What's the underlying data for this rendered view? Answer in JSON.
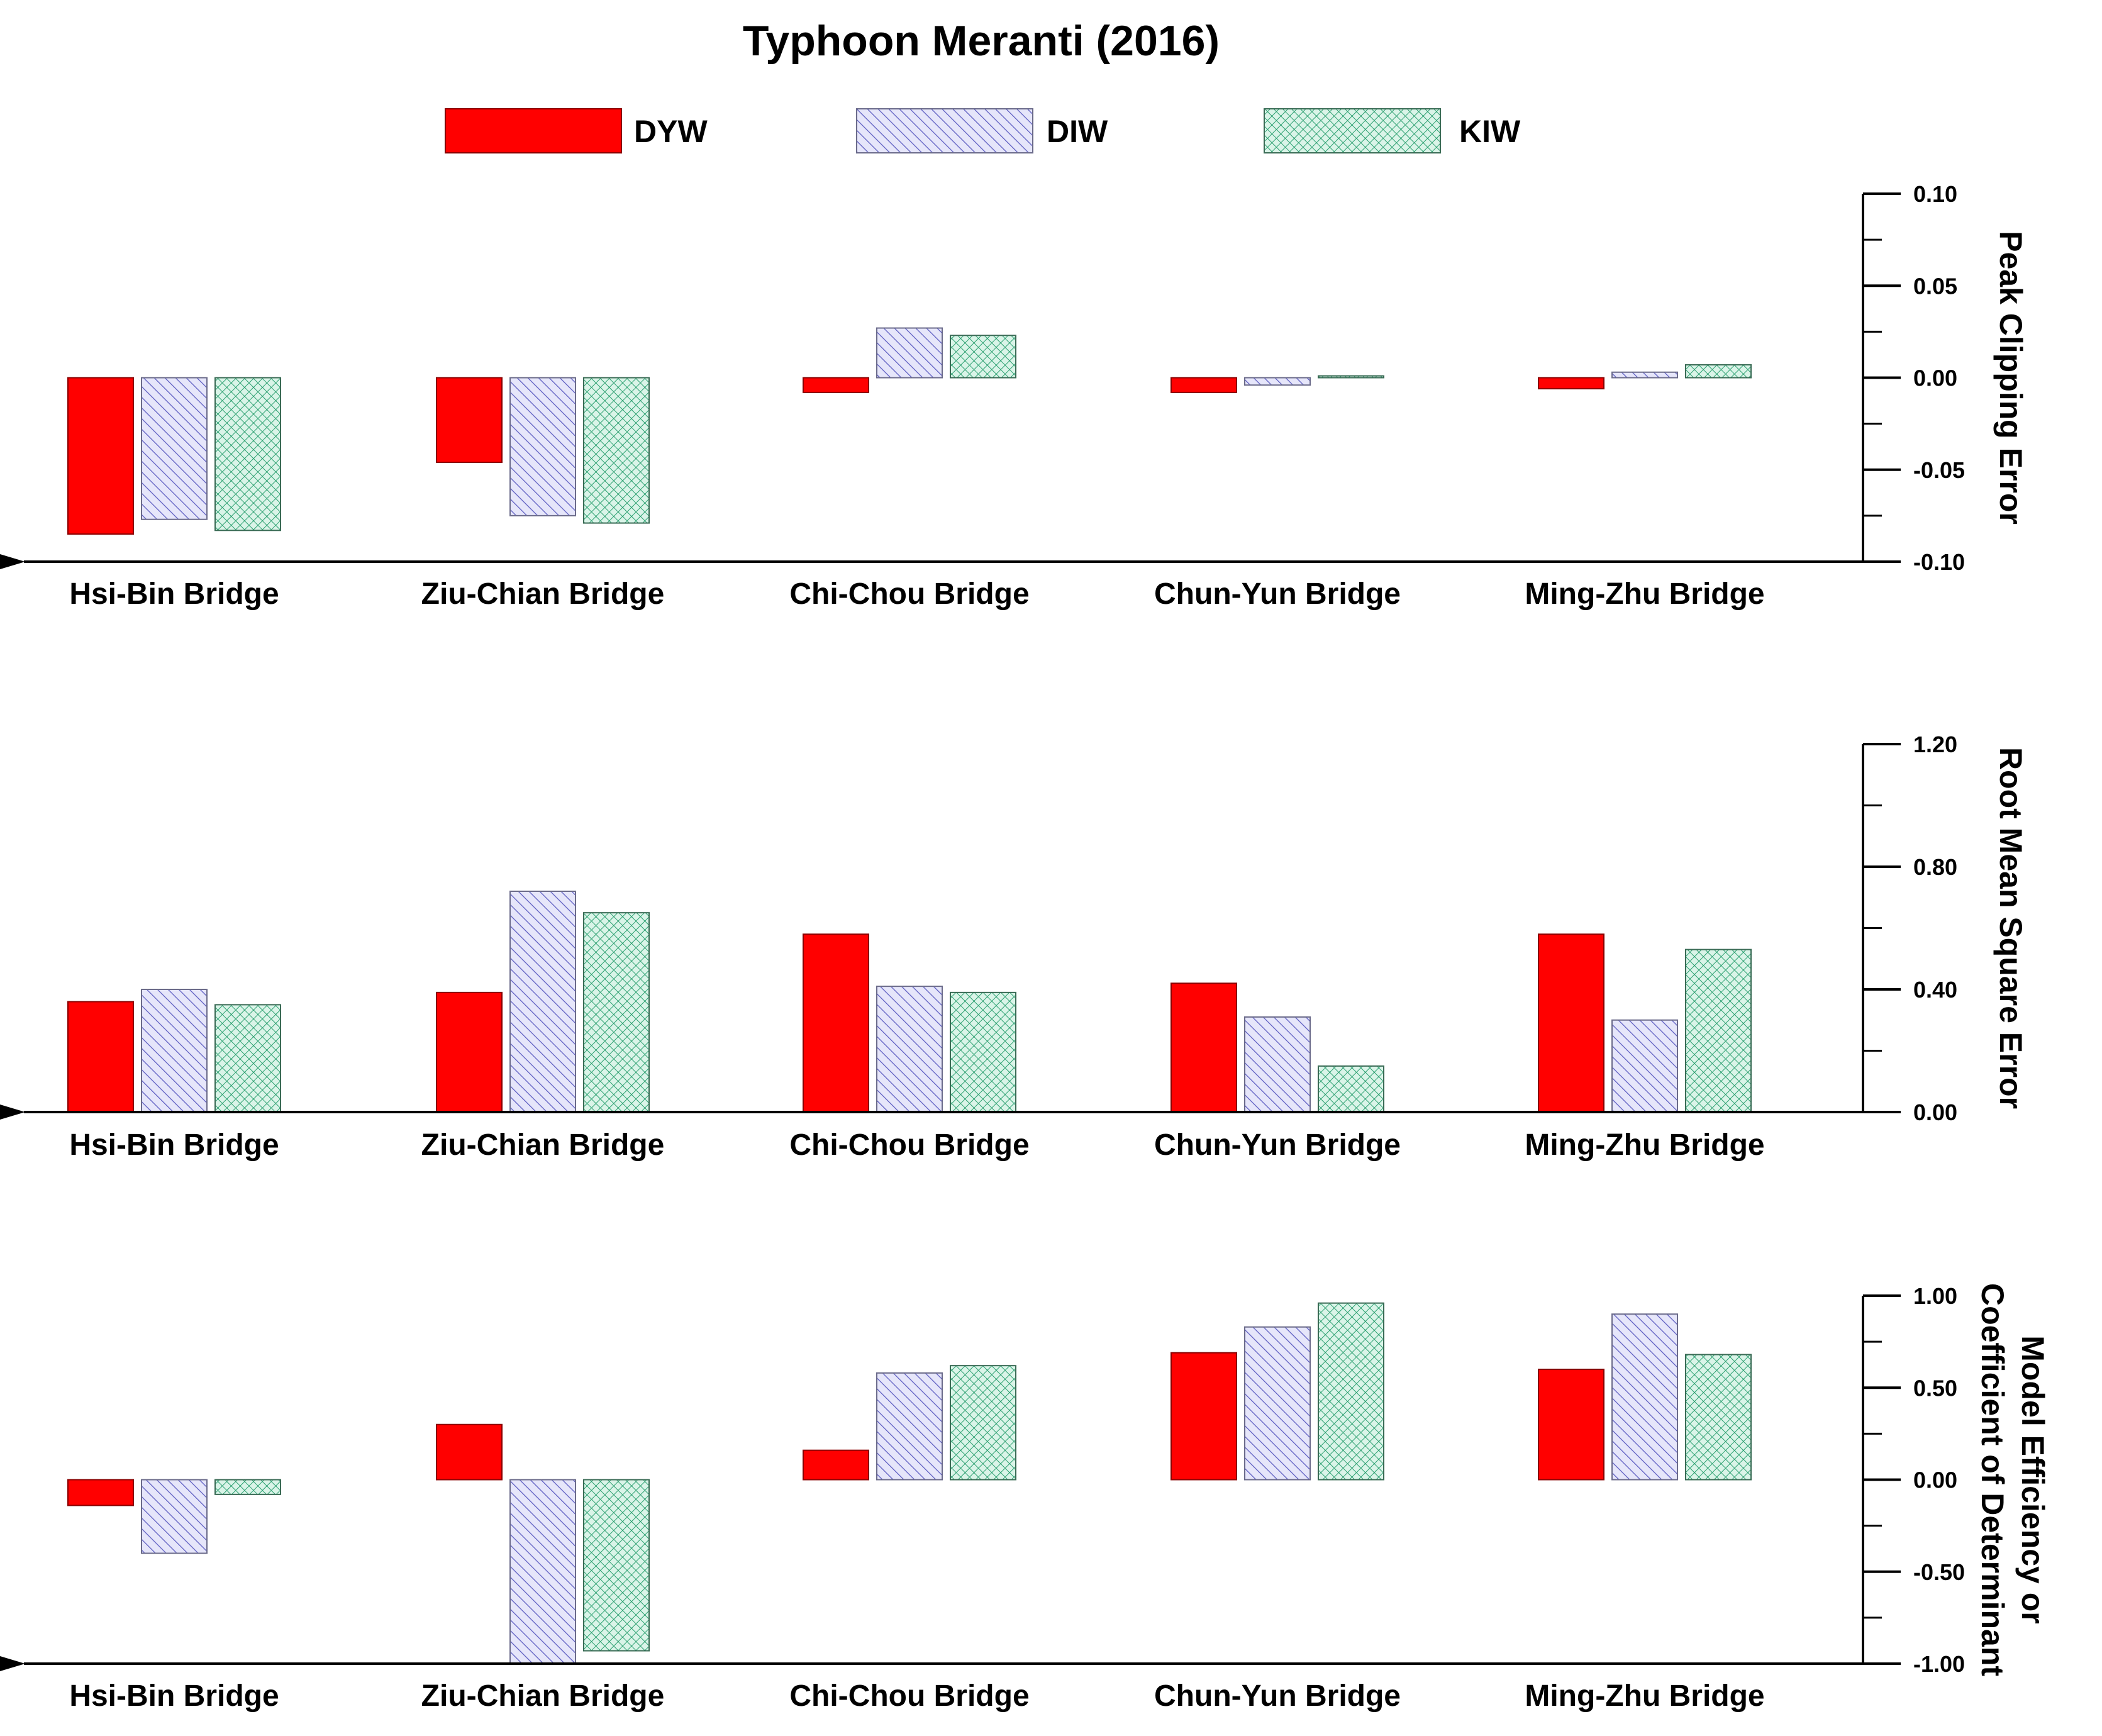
{
  "title": "Typhoon Meranti (2016)",
  "legend": [
    {
      "name": "DYW",
      "pattern": "solid",
      "fill": "#ff0000"
    },
    {
      "name": "DIW",
      "pattern": "hatch",
      "fill": "#e0e0f8",
      "stroke": "#5555bb"
    },
    {
      "name": "KIW",
      "pattern": "crosshatch",
      "fill": "#d6f2e6",
      "stroke": "#2aa070"
    }
  ],
  "chart_data": [
    {
      "type": "bar",
      "ylabel": [
        "Peak Clipping Error"
      ],
      "ylim": [
        -0.1,
        0.1
      ],
      "ticks": [
        "0.10",
        "0.05",
        "0.00",
        "-0.05",
        "-0.10"
      ],
      "tick_values": [
        0.1,
        0.05,
        0.0,
        -0.05,
        -0.1
      ],
      "categories": [
        "Hsi-Bin Bridge",
        "Ziu-Chian Bridge",
        "Chi-Chou Bridge",
        "Chun-Yun Bridge",
        "Ming-Zhu Bridge"
      ],
      "series": [
        {
          "name": "DYW",
          "values": [
            -0.085,
            -0.046,
            -0.008,
            -0.008,
            -0.006
          ]
        },
        {
          "name": "DIW",
          "values": [
            -0.077,
            -0.075,
            0.027,
            -0.004,
            0.003
          ]
        },
        {
          "name": "KIW",
          "values": [
            -0.083,
            -0.079,
            0.023,
            0.001,
            0.007
          ]
        }
      ]
    },
    {
      "type": "bar",
      "ylabel": [
        "Root Mean Square Error"
      ],
      "ylim": [
        0.0,
        1.2
      ],
      "ticks": [
        "1.20",
        "0.80",
        "0.40",
        "0.00"
      ],
      "tick_values": [
        1.2,
        0.8,
        0.4,
        0.0
      ],
      "categories": [
        "Hsi-Bin Bridge",
        "Ziu-Chian Bridge",
        "Chi-Chou Bridge",
        "Chun-Yun Bridge",
        "Ming-Zhu Bridge"
      ],
      "series": [
        {
          "name": "DYW",
          "values": [
            0.36,
            0.39,
            0.58,
            0.42,
            0.58
          ]
        },
        {
          "name": "DIW",
          "values": [
            0.4,
            0.72,
            0.41,
            0.31,
            0.3
          ]
        },
        {
          "name": "KIW",
          "values": [
            0.35,
            0.65,
            0.39,
            0.15,
            0.53
          ]
        }
      ]
    },
    {
      "type": "bar",
      "ylabel": [
        "Model Efficiency or",
        "Coefficient of Determinant"
      ],
      "ylim": [
        -1.0,
        1.0
      ],
      "ticks": [
        "1.00",
        "0.50",
        "0.00",
        "-0.50",
        "-1.00"
      ],
      "tick_values": [
        1.0,
        0.5,
        0.0,
        -0.5,
        -1.0
      ],
      "categories": [
        "Hsi-Bin Bridge",
        "Ziu-Chian Bridge",
        "Chi-Chou Bridge",
        "Chun-Yun Bridge",
        "Ming-Zhu Bridge"
      ],
      "series": [
        {
          "name": "DYW",
          "values": [
            -0.14,
            0.3,
            0.16,
            0.69,
            0.6
          ]
        },
        {
          "name": "DIW",
          "values": [
            -0.4,
            -1.0,
            0.58,
            0.83,
            0.9
          ]
        },
        {
          "name": "KIW",
          "values": [
            -0.08,
            -0.93,
            0.62,
            0.96,
            0.68
          ]
        }
      ]
    }
  ]
}
